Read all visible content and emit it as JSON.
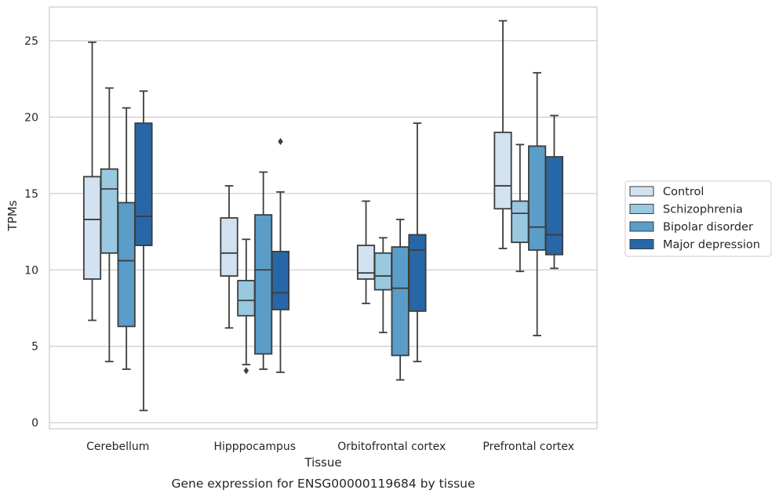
{
  "chart_data": {
    "type": "boxplot",
    "caption": "Gene expression for ENSG00000119684 by tissue",
    "xlabel": "Tissue",
    "ylabel": "TPMs",
    "ylim": [
      -0.4,
      27.2
    ],
    "yticks": [
      0,
      5,
      10,
      15,
      20,
      25
    ],
    "grid": true,
    "legend_position": "right",
    "categories": [
      "Cerebellum",
      "Hipppocampus",
      "Orbitofrontal cortex",
      "Prefrontal cortex"
    ],
    "series": [
      {
        "name": "Control",
        "color": "#d2e2f1",
        "boxes": [
          {
            "whislo": 6.7,
            "q1": 9.4,
            "med": 13.3,
            "q3": 16.1,
            "whishi": 24.9,
            "fliers": []
          },
          {
            "whislo": 6.2,
            "q1": 9.6,
            "med": 11.1,
            "q3": 13.4,
            "whishi": 15.5,
            "fliers": []
          },
          {
            "whislo": 7.8,
            "q1": 9.4,
            "med": 9.8,
            "q3": 11.6,
            "whishi": 14.5,
            "fliers": []
          },
          {
            "whislo": 11.4,
            "q1": 14.0,
            "med": 15.5,
            "q3": 19.0,
            "whishi": 26.3,
            "fliers": []
          }
        ]
      },
      {
        "name": "Schizophrenia",
        "color": "#9ac8e0",
        "boxes": [
          {
            "whislo": 4.0,
            "q1": 11.1,
            "med": 15.3,
            "q3": 16.6,
            "whishi": 21.9,
            "fliers": []
          },
          {
            "whislo": 3.8,
            "q1": 7.0,
            "med": 8.0,
            "q3": 9.3,
            "whishi": 12.0,
            "fliers": [
              3.4
            ]
          },
          {
            "whislo": 5.9,
            "q1": 8.7,
            "med": 9.6,
            "q3": 11.1,
            "whishi": 12.1,
            "fliers": []
          },
          {
            "whislo": 9.9,
            "q1": 11.8,
            "med": 13.7,
            "q3": 14.5,
            "whishi": 18.2,
            "fliers": []
          }
        ]
      },
      {
        "name": "Bipolar disorder",
        "color": "#5a9dc9",
        "boxes": [
          {
            "whislo": 3.5,
            "q1": 6.3,
            "med": 10.6,
            "q3": 14.4,
            "whishi": 20.6,
            "fliers": []
          },
          {
            "whislo": 3.5,
            "q1": 4.5,
            "med": 10.0,
            "q3": 13.6,
            "whishi": 16.4,
            "fliers": []
          },
          {
            "whislo": 2.8,
            "q1": 4.4,
            "med": 8.8,
            "q3": 11.5,
            "whishi": 13.3,
            "fliers": []
          },
          {
            "whislo": 5.7,
            "q1": 11.3,
            "med": 12.8,
            "q3": 18.1,
            "whishi": 22.9,
            "fliers": []
          }
        ]
      },
      {
        "name": "Major depression",
        "color": "#2767a7",
        "boxes": [
          {
            "whislo": 0.8,
            "q1": 11.6,
            "med": 13.5,
            "q3": 19.6,
            "whishi": 21.7,
            "fliers": []
          },
          {
            "whislo": 3.3,
            "q1": 7.4,
            "med": 8.5,
            "q3": 11.2,
            "whishi": 15.1,
            "fliers": [
              18.4
            ]
          },
          {
            "whislo": 4.0,
            "q1": 7.3,
            "med": 11.3,
            "q3": 12.3,
            "whishi": 19.6,
            "fliers": []
          },
          {
            "whislo": 10.1,
            "q1": 11.0,
            "med": 12.3,
            "q3": 17.4,
            "whishi": 20.1,
            "fliers": []
          }
        ]
      }
    ]
  }
}
